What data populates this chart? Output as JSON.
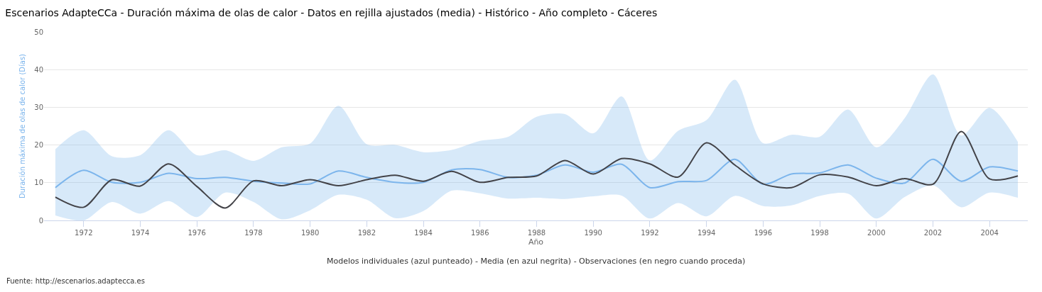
{
  "chart_data": {
    "type": "line",
    "title": "Escenarios AdapteCCa - Duración máxima de olas de calor - Datos en rejilla ajustados (media) - Histórico - Año completo - Cáceres",
    "xlabel": "Año",
    "ylabel": "Duración máxima de olas de calor (Días)",
    "x": [
      1971,
      1972,
      1973,
      1974,
      1975,
      1976,
      1977,
      1978,
      1979,
      1980,
      1981,
      1982,
      1983,
      1984,
      1985,
      1986,
      1987,
      1988,
      1989,
      1990,
      1991,
      1992,
      1993,
      1994,
      1995,
      1996,
      1997,
      1998,
      1999,
      2000,
      2001,
      2002,
      2003,
      2004,
      2005
    ],
    "series": [
      {
        "color": "#7cb5ec",
        "values": [
          8.7,
          13.3,
          10.1,
          10.1,
          12.5,
          11.1,
          11.4,
          10.4,
          9.9,
          9.7,
          13.1,
          11.4,
          10.1,
          10.1,
          13.4,
          13.5,
          11.4,
          12,
          14.7,
          12.8,
          14.9,
          8.7,
          10.3,
          10.6,
          16.2,
          9.6,
          12.3,
          12.6,
          14.7,
          11.2,
          9.9,
          16.2,
          10.4,
          14.2,
          13.1
        ],
        "lower": [
          1.3,
          0,
          4.9,
          1.8,
          5.1,
          0.9,
          7.4,
          4.9,
          0.3,
          2.7,
          6.8,
          5.5,
          0.6,
          2.5,
          7.9,
          7.2,
          5.8,
          6,
          5.7,
          6.4,
          6.6,
          0.5,
          4.6,
          1.1,
          6.5,
          3.8,
          4,
          6.5,
          7.1,
          0.5,
          6.2,
          9.3,
          3.5,
          7.4,
          6
        ],
        "upper": [
          18.9,
          23.9,
          17,
          17.3,
          23.9,
          17.3,
          18.6,
          15.8,
          19.4,
          20.4,
          30.4,
          20.2,
          20,
          18.1,
          18.7,
          21.1,
          22.2,
          27.5,
          28.2,
          23.1,
          32.9,
          15.9,
          23.8,
          26.6,
          37.3,
          20.5,
          22.7,
          22.2,
          29.4,
          19.4,
          27.1,
          38.7,
          22.5,
          29.9,
          20.8
        ]
      },
      {
        "color": "#434348",
        "values": [
          6.2,
          3.5,
          10.8,
          9.1,
          15,
          9,
          3.3,
          10.5,
          9.2,
          10.8,
          9.2,
          10.8,
          12,
          10.4,
          13,
          10.1,
          11.4,
          11.8,
          15.9,
          12.3,
          16.4,
          15,
          11.5,
          20.6,
          14.7,
          9.7,
          8.7,
          12.1,
          11.5,
          9.2,
          11.1,
          9.6,
          23.6,
          11,
          11.8
        ]
      }
    ],
    "xlim": [
      1970.6,
      2005.35
    ],
    "xticks": [
      1972,
      1974,
      1976,
      1978,
      1980,
      1982,
      1984,
      1986,
      1988,
      1990,
      1992,
      1994,
      1996,
      1998,
      2000,
      2002,
      2004
    ],
    "ylim": [
      0,
      50
    ],
    "yticks": [
      0,
      10,
      20,
      30,
      40,
      50
    ],
    "grid": "y",
    "marker": "none",
    "line_style": "solid",
    "annotations": [
      "Modelos individuales (azul punteado) - Media (en azul negrita) - Observaciones (en negro cuando proceda)",
      "Fuente: http://escenarios.adaptecca.es"
    ]
  }
}
